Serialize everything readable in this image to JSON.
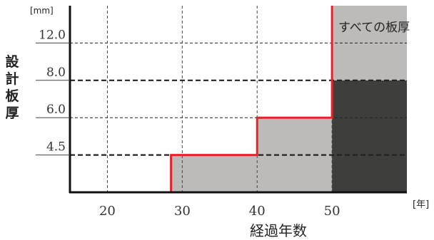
{
  "chart_data": {
    "type": "area",
    "title": "",
    "ylabel": "設計板厚",
    "ylabel_chars": [
      "設",
      "計",
      "板",
      "厚"
    ],
    "y_unit": "[mm]",
    "xlabel": "経過年数",
    "x_unit": "[年]",
    "x_ticks": [
      20,
      30,
      40,
      50
    ],
    "y_ticks": [
      "4.5",
      "6.0",
      "8.0",
      "12.0"
    ],
    "xlim": [
      15,
      60
    ],
    "ylim": [
      0,
      5
    ],
    "grid": true,
    "required_thickness_step": [
      {
        "x_from": 28.5,
        "x_to": 40,
        "thickness": "4.5"
      },
      {
        "x_from": 40,
        "x_to": 50,
        "thickness": "6.0"
      },
      {
        "x_from": 50,
        "x_to": 60,
        "thickness": "すべての板厚"
      }
    ],
    "regions": [
      {
        "x_from": 28.5,
        "x_to": 40,
        "y_to_tick": "4.5",
        "shade": "light"
      },
      {
        "x_from": 40,
        "x_to": 50,
        "y_to_tick": "6.0",
        "shade": "light"
      },
      {
        "x_from": 50,
        "x_to": 60,
        "y_to_tick": "8.0",
        "shade": "dark"
      },
      {
        "x_from": 50,
        "x_to": 60,
        "y_from_tick": "8.0",
        "y_to_tick": "top",
        "shade": "light"
      }
    ],
    "annotation": "すべての板厚",
    "colors": {
      "step_line": "#e0262b",
      "light_fill": "#bdbbb9",
      "dark_fill": "#3e3f3d",
      "axis": "#111111"
    }
  }
}
